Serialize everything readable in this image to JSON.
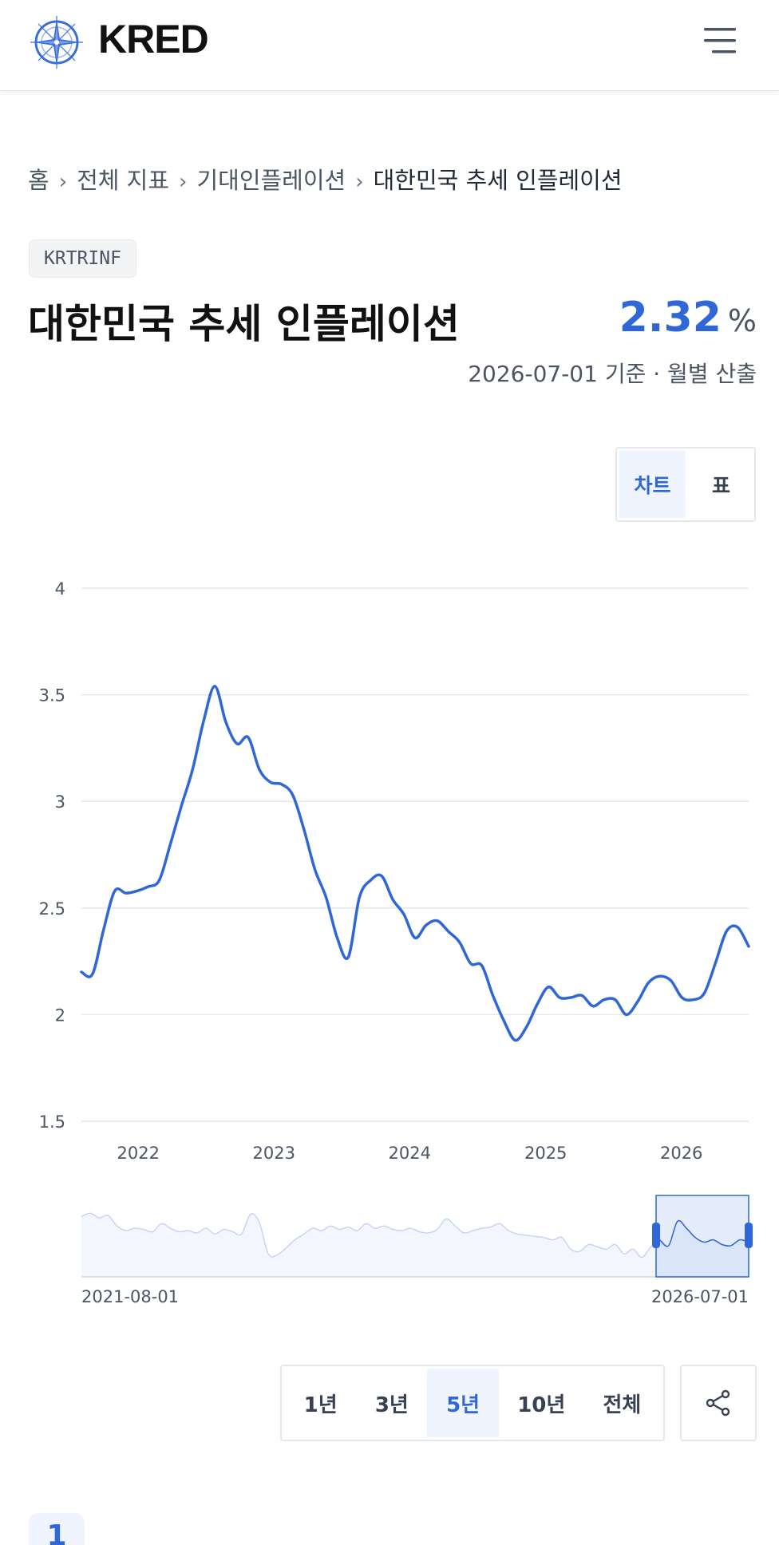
{
  "header": {
    "brand": "KRED",
    "logo_icon": "compass-icon",
    "menu_icon": "hamburger-menu-icon"
  },
  "breadcrumb": {
    "items": [
      "홈",
      "전체 지표",
      "기대인플레이션"
    ],
    "current": "대한민국 추세 인플레이션",
    "separator": "›"
  },
  "indicator": {
    "code": "KRTRINF",
    "title": "대한민국 추세 인플레이션",
    "value": "2.32",
    "unit": "%",
    "subline": "2026-07-01 기준 · 월별 산출"
  },
  "view_toggle": {
    "chart_label": "차트",
    "table_label": "표",
    "active": "chart"
  },
  "range_buttons": {
    "options": [
      "1년",
      "3년",
      "5년",
      "10년",
      "전체"
    ],
    "active": "5년"
  },
  "share_icon": "share-icon",
  "colors": {
    "accent": "#2f67d8",
    "grid": "#e5e7eb",
    "text_muted": "#4b5563"
  },
  "peek_label": "1",
  "chart_data": {
    "type": "line",
    "x_start": "2021-08-01",
    "x_end": "2026-07-01",
    "ylim": [
      1.5,
      4
    ],
    "yticks": [
      "4",
      "3.5",
      "3",
      "2.5",
      "2",
      "1.5"
    ],
    "xticks": [
      "2022",
      "2023",
      "2024",
      "2025",
      "2026"
    ],
    "grid": true,
    "navigator": {
      "start_label": "2021-08-01",
      "end_label": "2026-07-01"
    },
    "series": [
      {
        "values": [
          2.2,
          2.19,
          2.4,
          2.58,
          2.57,
          2.58,
          2.6,
          2.63,
          2.8,
          2.98,
          3.15,
          3.38,
          3.54,
          3.37,
          3.27,
          3.3,
          3.15,
          3.09,
          3.08,
          3.03,
          2.87,
          2.68,
          2.55,
          2.36,
          2.27,
          2.55,
          2.63,
          2.65,
          2.54,
          2.47,
          2.36,
          2.42,
          2.44,
          2.39,
          2.34,
          2.24,
          2.23,
          2.09,
          1.97,
          1.88,
          1.94,
          2.05,
          2.13,
          2.08,
          2.08,
          2.09,
          2.04,
          2.07,
          2.07,
          2.0,
          2.06,
          2.15,
          2.18,
          2.16,
          2.08,
          2.07,
          2.1,
          2.24,
          2.39,
          2.41,
          2.32
        ]
      }
    ],
    "navigator_values": [
      2.3,
      2.33,
      2.29,
      2.31,
      2.22,
      2.18,
      2.2,
      2.19,
      2.17,
      2.24,
      2.2,
      2.17,
      2.18,
      2.16,
      2.2,
      2.15,
      2.19,
      2.17,
      2.15,
      2.32,
      2.25,
      1.98,
      1.97,
      2.03,
      2.1,
      2.15,
      2.2,
      2.18,
      2.22,
      2.19,
      2.21,
      2.18,
      2.24,
      2.2,
      2.22,
      2.19,
      2.18,
      2.2,
      2.17,
      2.16,
      2.19,
      2.28,
      2.22,
      2.16,
      2.18,
      2.2,
      2.21,
      2.24,
      2.18,
      2.15,
      2.14,
      2.13,
      2.12,
      2.1,
      2.12,
      2.02,
      2.0,
      2.06,
      2.04,
      2.02,
      2.06,
      1.98,
      2.02,
      1.95,
      2.04,
      2.1,
      2.05,
      2.26,
      2.2,
      2.12,
      2.08,
      2.1,
      2.06,
      2.05,
      2.1,
      2.08
    ]
  }
}
